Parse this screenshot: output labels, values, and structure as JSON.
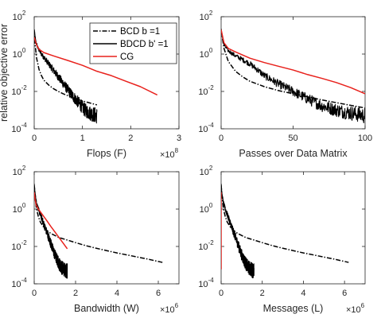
{
  "chart_data": [
    {
      "type": "line",
      "xlabel": "Flops (F)",
      "ylabel": "relative objective error",
      "x_multiplier": "×10",
      "x_exponent": "8",
      "xlim": [
        0,
        3
      ],
      "ylim_log10": [
        -4,
        2
      ],
      "x_ticks": [
        "0",
        "1",
        "2",
        "3"
      ],
      "y_ticks": [
        "10",
        "10",
        "10",
        "10"
      ],
      "y_tick_exponents": [
        "-4",
        "-2",
        "0",
        "2"
      ],
      "legend": {
        "position": "top-right",
        "entries": [
          "BCD b =1",
          "BDCD b' =1",
          "CG"
        ]
      },
      "series": [
        {
          "name": "BCD b =1",
          "color": "#000000",
          "style": "dashdot",
          "x": [
            0,
            0.02,
            0.05,
            0.1,
            0.15,
            0.2,
            0.3,
            0.4,
            0.5,
            0.6,
            0.8,
            1.0,
            1.3
          ],
          "y": [
            20,
            3,
            0.6,
            0.15,
            0.07,
            0.04,
            0.022,
            0.014,
            0.01,
            0.0075,
            0.0046,
            0.0031,
            0.0019
          ]
        },
        {
          "name": "BDCD b' =1",
          "color": "#000000",
          "style": "solid",
          "noisy": true,
          "x": [
            0,
            0.03,
            0.08,
            0.15,
            0.25,
            0.35,
            0.45,
            0.55,
            0.65,
            0.75,
            0.85,
            0.95,
            1.05,
            1.15,
            1.3
          ],
          "y": [
            20,
            5,
            2,
            1,
            0.45,
            0.2,
            0.09,
            0.04,
            0.018,
            0.008,
            0.004,
            0.002,
            0.001,
            0.0007,
            0.0005
          ]
        },
        {
          "name": "CG",
          "color": "#e8211c",
          "style": "solid",
          "x": [
            0,
            0.05,
            0.1,
            0.2,
            0.4,
            0.7,
            1.0,
            1.3,
            1.6,
            1.9,
            2.2,
            2.55
          ],
          "y": [
            8,
            3,
            1.8,
            1.2,
            0.8,
            0.45,
            0.25,
            0.12,
            0.07,
            0.035,
            0.018,
            0.0065
          ]
        }
      ]
    },
    {
      "type": "line",
      "xlabel": "Passes over Data Matrix",
      "xlim": [
        0,
        100
      ],
      "ylim_log10": [
        -4,
        2
      ],
      "x_ticks": [
        "0",
        "50",
        "100"
      ],
      "y_ticks": [
        "10",
        "10",
        "10",
        "10"
      ],
      "y_tick_exponents": [
        "-4",
        "-2",
        "0",
        "2"
      ],
      "series": [
        {
          "name": "BCD b =1",
          "color": "#000000",
          "style": "dashdot",
          "x": [
            0,
            2,
            5,
            10,
            15,
            20,
            30,
            40,
            50,
            60,
            70,
            80,
            90,
            100
          ],
          "y": [
            20,
            2,
            0.4,
            0.12,
            0.06,
            0.035,
            0.018,
            0.011,
            0.0075,
            0.0052,
            0.0035,
            0.0025,
            0.0018,
            0.0013
          ]
        },
        {
          "name": "BDCD b' =1",
          "color": "#000000",
          "style": "solid",
          "noisy": true,
          "x": [
            0,
            2,
            5,
            10,
            15,
            20,
            25,
            30,
            40,
            50,
            60,
            70,
            80,
            90,
            100
          ],
          "y": [
            20,
            3,
            1.5,
            0.8,
            0.5,
            0.3,
            0.15,
            0.07,
            0.025,
            0.01,
            0.004,
            0.0017,
            0.001,
            0.0007,
            0.0005
          ]
        },
        {
          "name": "CG",
          "color": "#e8211c",
          "style": "solid",
          "x": [
            0,
            2,
            5,
            10,
            20,
            30,
            40,
            50,
            60,
            70,
            80,
            90,
            100
          ],
          "y": [
            20,
            4,
            2,
            1.3,
            0.6,
            0.35,
            0.22,
            0.14,
            0.08,
            0.05,
            0.03,
            0.016,
            0.0075
          ]
        }
      ]
    },
    {
      "type": "line",
      "xlabel": "Bandwidth (W)",
      "x_multiplier": "×10",
      "x_exponent": "6",
      "xlim": [
        0,
        7
      ],
      "ylim_log10": [
        -4,
        2
      ],
      "x_ticks": [
        "0",
        "2",
        "4",
        "6"
      ],
      "y_ticks": [
        "10",
        "10",
        "10",
        "10"
      ],
      "y_tick_exponents": [
        "-4",
        "-2",
        "0",
        "2"
      ],
      "series": [
        {
          "name": "BCD b =1",
          "color": "#000000",
          "style": "dashdot",
          "x": [
            0,
            0.05,
            0.1,
            0.2,
            0.3,
            0.5,
            0.8,
            1.2,
            1.6,
            2.0,
            2.5,
            3.0,
            3.5,
            4.0,
            4.5,
            5.0,
            5.5,
            6.2
          ],
          "y": [
            20,
            4,
            1.2,
            0.4,
            0.2,
            0.09,
            0.05,
            0.03,
            0.022,
            0.016,
            0.011,
            0.008,
            0.006,
            0.0045,
            0.0035,
            0.0027,
            0.0021,
            0.0014
          ]
        },
        {
          "name": "BDCD b' =1",
          "color": "#000000",
          "style": "solid",
          "noisy": true,
          "x": [
            0,
            0.05,
            0.1,
            0.2,
            0.3,
            0.4,
            0.5,
            0.6,
            0.7,
            0.8,
            0.9,
            1.0,
            1.1,
            1.2,
            1.3,
            1.45,
            1.6
          ],
          "y": [
            20,
            6,
            2.5,
            1,
            0.5,
            0.25,
            0.12,
            0.06,
            0.03,
            0.015,
            0.007,
            0.0035,
            0.002,
            0.0012,
            0.0008,
            0.0006,
            0.0005
          ]
        },
        {
          "name": "CG",
          "color": "#e8211c",
          "style": "solid",
          "x": [
            0,
            0.05,
            0.1,
            0.2,
            0.4,
            0.6,
            0.8,
            1.0,
            1.2,
            1.4,
            1.6
          ],
          "y": [
            8,
            3,
            1.6,
            1.0,
            0.5,
            0.25,
            0.12,
            0.06,
            0.03,
            0.015,
            0.0075
          ]
        }
      ]
    },
    {
      "type": "line",
      "xlabel": "Messages (L)",
      "x_multiplier": "×10",
      "x_exponent": "6",
      "xlim": [
        0,
        7
      ],
      "ylim_log10": [
        -4,
        2
      ],
      "x_ticks": [
        "0",
        "2",
        "4",
        "6"
      ],
      "y_ticks": [
        "10",
        "10",
        "10",
        "10"
      ],
      "y_tick_exponents": [
        "-4",
        "-2",
        "0",
        "2"
      ],
      "series": [
        {
          "name": "BCD b =1",
          "color": "#000000",
          "style": "dashdot",
          "x": [
            0,
            0.05,
            0.1,
            0.2,
            0.3,
            0.5,
            0.8,
            1.2,
            1.6,
            2.0,
            2.5,
            3.0,
            3.5,
            4.0,
            4.5,
            5.0,
            5.5,
            6.2
          ],
          "y": [
            20,
            4,
            1.2,
            0.4,
            0.2,
            0.09,
            0.05,
            0.03,
            0.022,
            0.016,
            0.011,
            0.008,
            0.006,
            0.0045,
            0.0035,
            0.0027,
            0.0021,
            0.0014
          ]
        },
        {
          "name": "BDCD b' =1",
          "color": "#000000",
          "style": "solid",
          "noisy": true,
          "x": [
            0,
            0.05,
            0.1,
            0.2,
            0.3,
            0.4,
            0.5,
            0.6,
            0.7,
            0.8,
            0.9,
            1.0,
            1.1,
            1.2,
            1.3,
            1.45,
            1.6
          ],
          "y": [
            20,
            6,
            2.5,
            1,
            0.5,
            0.25,
            0.12,
            0.06,
            0.03,
            0.015,
            0.007,
            0.0035,
            0.002,
            0.0012,
            0.0008,
            0.0006,
            0.0005
          ]
        },
        {
          "name": "CG",
          "color": "#e8211c",
          "style": "solid",
          "x": [
            0,
            0.0005,
            0.001,
            0.0015,
            0.002,
            0.003
          ],
          "y": [
            8,
            0.5,
            0.05,
            0.007,
            0.001,
            0.0006
          ]
        }
      ]
    }
  ]
}
